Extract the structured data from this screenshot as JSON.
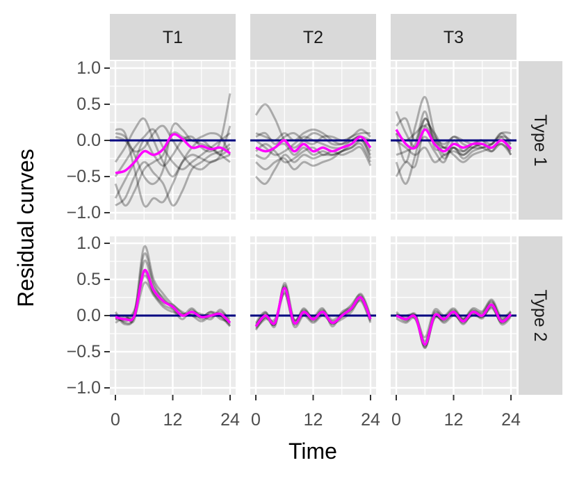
{
  "chart_data": {
    "type": "line",
    "ylabel": "Residual curves",
    "xlabel": "Time",
    "xlim": [
      0,
      24
    ],
    "ylim": [
      -1.0,
      1.0
    ],
    "x_ticks": [
      0,
      12,
      24
    ],
    "x_tick_labels": [
      "0",
      "12",
      "24"
    ],
    "y_ticks": [
      -1.0,
      -0.5,
      0.0,
      0.5,
      1.0
    ],
    "y_tick_labels": [
      "−1.0",
      "−0.5",
      "0.0",
      "0.5",
      "1.0"
    ],
    "reference_line": 0.0,
    "colors": {
      "mean": "#FF00FF",
      "reference": "#000080",
      "curves": "#000000",
      "panel_bg": "#EBEBEB",
      "strip_bg": "#D9D9D9"
    },
    "x": [
      0,
      2,
      4,
      6,
      8,
      10,
      12,
      14,
      16,
      18,
      20,
      22,
      24
    ],
    "col_labels": [
      "T1",
      "T2",
      "T3"
    ],
    "row_labels": [
      "Type 1",
      "Type 2"
    ],
    "panels": [
      {
        "col": "T1",
        "row": "Type 1",
        "mean": [
          -0.45,
          -0.42,
          -0.3,
          -0.15,
          -0.2,
          -0.12,
          0.08,
          0.02,
          -0.1,
          -0.08,
          -0.12,
          -0.1,
          -0.18
        ],
        "curves": [
          [
            -0.8,
            -0.55,
            -0.3,
            0.0,
            -0.2,
            -0.35,
            -0.2,
            0.0,
            0.05,
            -0.1,
            -0.15,
            0.0,
            0.65
          ],
          [
            -0.6,
            -0.9,
            -0.7,
            -0.4,
            -0.3,
            -0.2,
            0.1,
            0.05,
            0.0,
            -0.05,
            -0.1,
            -0.2,
            -0.3
          ],
          [
            0.1,
            0.05,
            -0.2,
            -0.5,
            -0.6,
            -0.4,
            0.2,
            0.15,
            0.0,
            0.05,
            0.1,
            0.05,
            -0.2
          ],
          [
            -0.3,
            -0.1,
            0.15,
            0.3,
            0.0,
            -0.3,
            -0.5,
            -0.3,
            -0.2,
            -0.25,
            -0.3,
            -0.2,
            0.2
          ],
          [
            0.15,
            0.1,
            -0.4,
            -0.9,
            -0.8,
            -0.85,
            -0.6,
            -0.3,
            -0.1,
            0.0,
            -0.1,
            -0.2,
            -0.1
          ],
          [
            -0.9,
            -0.8,
            -0.5,
            -0.3,
            -0.45,
            -0.6,
            -0.9,
            -0.7,
            -0.4,
            -0.3,
            -0.2,
            -0.15,
            -0.05
          ],
          [
            0.05,
            0.0,
            -0.15,
            -0.1,
            0.1,
            0.2,
            0.0,
            -0.2,
            -0.35,
            -0.4,
            -0.3,
            -0.25,
            -0.2
          ],
          [
            -0.5,
            -0.3,
            -0.1,
            0.05,
            0.15,
            -0.1,
            -0.3,
            -0.4,
            -0.3,
            -0.2,
            -0.1,
            0.0,
            0.1
          ]
        ]
      },
      {
        "col": "T2",
        "row": "Type 1",
        "mean": [
          -0.1,
          -0.15,
          -0.1,
          0.0,
          -0.15,
          -0.05,
          -0.15,
          -0.1,
          -0.15,
          -0.1,
          -0.05,
          0.05,
          -0.1
        ],
        "curves": [
          [
            0.35,
            0.5,
            0.3,
            0.0,
            -0.1,
            0.0,
            0.1,
            0.05,
            -0.05,
            -0.05,
            0.0,
            0.05,
            -0.15
          ],
          [
            -0.5,
            -0.6,
            -0.4,
            -0.2,
            -0.3,
            -0.2,
            -0.25,
            -0.2,
            -0.2,
            -0.15,
            -0.1,
            0.0,
            -0.2
          ],
          [
            -0.3,
            -0.4,
            -0.3,
            -0.25,
            -0.4,
            -0.3,
            -0.35,
            -0.3,
            -0.25,
            -0.15,
            -0.1,
            -0.05,
            -0.3
          ],
          [
            0.1,
            0.05,
            0.0,
            0.1,
            0.0,
            0.1,
            0.15,
            0.1,
            0.0,
            -0.05,
            0.05,
            0.1,
            0.1
          ],
          [
            -0.2,
            -0.25,
            -0.1,
            -0.05,
            -0.2,
            -0.1,
            -0.2,
            -0.15,
            -0.2,
            -0.15,
            -0.05,
            0.05,
            -0.25
          ],
          [
            0.0,
            -0.1,
            -0.2,
            -0.15,
            -0.05,
            0.05,
            0.0,
            -0.05,
            -0.1,
            -0.1,
            0.0,
            0.05,
            0.0
          ],
          [
            -0.15,
            -0.05,
            -0.15,
            -0.3,
            -0.25,
            -0.15,
            -0.1,
            -0.2,
            -0.15,
            -0.2,
            -0.15,
            -0.1,
            -0.35
          ],
          [
            0.05,
            0.1,
            -0.05,
            0.05,
            0.1,
            0.0,
            -0.05,
            0.05,
            0.05,
            0.0,
            0.05,
            0.15,
            0.05
          ]
        ]
      },
      {
        "col": "T3",
        "row": "Type 1",
        "mean": [
          0.15,
          -0.05,
          -0.1,
          0.15,
          -0.05,
          -0.15,
          -0.05,
          -0.1,
          -0.05,
          -0.05,
          -0.1,
          0.0,
          -0.12
        ],
        "curves": [
          [
            0.1,
            -0.3,
            0.2,
            0.6,
            0.1,
            -0.2,
            -0.1,
            -0.2,
            -0.1,
            -0.05,
            -0.1,
            0.0,
            -0.1
          ],
          [
            -0.3,
            -0.6,
            -0.2,
            0.3,
            0.0,
            -0.25,
            -0.1,
            -0.25,
            -0.15,
            -0.1,
            -0.05,
            0.05,
            -0.2
          ],
          [
            0.4,
            0.1,
            -0.1,
            0.05,
            -0.15,
            -0.3,
            0.0,
            -0.15,
            -0.05,
            0.0,
            -0.15,
            0.05,
            0.0
          ],
          [
            -0.5,
            -0.3,
            -0.35,
            0.2,
            0.1,
            -0.1,
            0.05,
            -0.05,
            -0.1,
            -0.1,
            -0.05,
            0.1,
            -0.05
          ],
          [
            0.2,
            0.3,
            0.0,
            0.4,
            -0.1,
            -0.1,
            -0.2,
            -0.3,
            -0.2,
            -0.15,
            -0.1,
            -0.05,
            -0.15
          ],
          [
            0.0,
            -0.1,
            -0.2,
            -0.1,
            -0.3,
            -0.2,
            -0.15,
            -0.2,
            -0.1,
            -0.05,
            -0.1,
            0.0,
            -0.05
          ],
          [
            -0.2,
            -0.15,
            -0.05,
            0.3,
            0.05,
            -0.05,
            0.05,
            0.0,
            -0.05,
            0.0,
            -0.05,
            0.1,
            0.1
          ],
          [
            0.1,
            0.0,
            0.1,
            0.2,
            0.0,
            -0.1,
            -0.1,
            -0.15,
            -0.05,
            -0.1,
            -0.15,
            -0.05,
            -0.2
          ]
        ]
      },
      {
        "col": "T1",
        "row": "Type 2",
        "mean": [
          -0.02,
          -0.05,
          0.0,
          0.62,
          0.35,
          0.2,
          0.12,
          0.0,
          0.05,
          -0.02,
          0.0,
          0.02,
          -0.1
        ],
        "curves": [
          [
            0.05,
            -0.1,
            0.02,
            0.95,
            0.5,
            0.3,
            0.15,
            0.05,
            0.0,
            -0.02,
            0.05,
            0.0,
            -0.12
          ],
          [
            -0.05,
            0.0,
            -0.05,
            0.75,
            0.4,
            0.25,
            0.1,
            0.0,
            0.05,
            0.02,
            -0.02,
            0.05,
            -0.05
          ],
          [
            0.0,
            -0.08,
            0.05,
            0.55,
            0.3,
            0.15,
            0.08,
            -0.05,
            0.08,
            -0.05,
            0.02,
            -0.02,
            -0.15
          ],
          [
            -0.1,
            -0.02,
            -0.02,
            0.45,
            0.28,
            0.12,
            0.05,
            0.02,
            0.02,
            0.0,
            -0.05,
            0.08,
            -0.1
          ],
          [
            0.02,
            -0.12,
            0.0,
            0.85,
            0.45,
            0.22,
            0.12,
            0.0,
            0.1,
            -0.02,
            0.05,
            -0.05,
            -0.08
          ],
          [
            -0.05,
            -0.05,
            0.08,
            0.6,
            0.32,
            0.18,
            0.15,
            0.03,
            0.0,
            -0.08,
            0.0,
            0.0,
            -0.14
          ]
        ]
      },
      {
        "col": "T2",
        "row": "Type 2",
        "mean": [
          -0.15,
          0.0,
          -0.1,
          0.38,
          -0.1,
          0.05,
          -0.05,
          0.05,
          -0.1,
          0.0,
          0.1,
          0.25,
          -0.05
        ],
        "curves": [
          [
            -0.1,
            0.05,
            -0.15,
            0.45,
            -0.05,
            0.08,
            -0.02,
            0.1,
            -0.15,
            0.05,
            0.12,
            0.3,
            0.0
          ],
          [
            -0.18,
            -0.05,
            -0.05,
            0.3,
            -0.12,
            0.02,
            -0.08,
            0.02,
            -0.08,
            -0.02,
            0.08,
            0.2,
            -0.1
          ],
          [
            -0.12,
            0.02,
            -0.12,
            0.42,
            -0.08,
            0.1,
            -0.05,
            0.06,
            -0.12,
            0.02,
            0.15,
            0.28,
            -0.02
          ],
          [
            -0.2,
            -0.02,
            -0.08,
            0.35,
            -0.15,
            0.0,
            -0.1,
            0.0,
            -0.1,
            -0.05,
            0.05,
            0.22,
            -0.08
          ],
          [
            -0.14,
            0.04,
            -0.1,
            0.4,
            -0.1,
            0.06,
            -0.03,
            0.08,
            -0.06,
            0.03,
            0.1,
            0.26,
            -0.04
          ],
          [
            -0.16,
            -0.03,
            -0.12,
            0.32,
            -0.06,
            0.04,
            -0.06,
            0.04,
            -0.11,
            -0.01,
            0.09,
            0.24,
            -0.06
          ]
        ]
      },
      {
        "col": "T3",
        "row": "Type 2",
        "mean": [
          0.0,
          -0.05,
          -0.02,
          -0.4,
          0.0,
          -0.05,
          0.05,
          -0.08,
          0.05,
          0.0,
          0.15,
          -0.08,
          0.02
        ],
        "curves": [
          [
            0.02,
            -0.08,
            0.0,
            -0.45,
            0.02,
            -0.02,
            0.08,
            -0.05,
            0.08,
            0.02,
            0.18,
            -0.05,
            0.05
          ],
          [
            -0.02,
            -0.02,
            -0.05,
            -0.35,
            -0.02,
            -0.08,
            0.02,
            -0.1,
            0.02,
            -0.02,
            0.12,
            -0.1,
            0.0
          ],
          [
            0.05,
            -0.05,
            0.02,
            -0.38,
            0.05,
            -0.04,
            0.06,
            -0.06,
            0.06,
            0.04,
            0.2,
            -0.06,
            0.04
          ],
          [
            -0.04,
            -0.1,
            -0.04,
            -0.42,
            -0.04,
            -0.06,
            0.04,
            -0.12,
            0.04,
            -0.04,
            0.14,
            -0.12,
            -0.02
          ],
          [
            0.0,
            0.0,
            0.0,
            -0.3,
            0.08,
            0.0,
            0.1,
            -0.04,
            0.1,
            0.06,
            0.22,
            -0.02,
            0.06
          ],
          [
            0.02,
            -0.06,
            -0.02,
            -0.44,
            -0.02,
            -0.1,
            0.0,
            -0.08,
            0.0,
            -0.02,
            0.1,
            -0.09,
            0.01
          ]
        ]
      }
    ]
  }
}
